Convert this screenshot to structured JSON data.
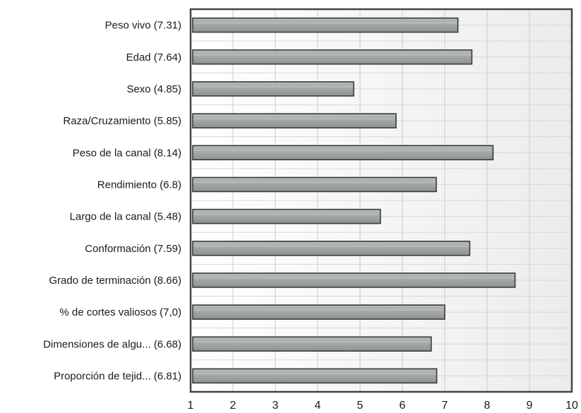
{
  "chart_data": {
    "type": "bar",
    "orientation": "horizontal",
    "categories": [
      "Peso vivo  (7.31)",
      "Edad  (7.64)",
      "Sexo  (4.85)",
      "Raza/Cruzamiento  (5.85)",
      "Peso de la canal (8.14)",
      "Rendimiento  (6.8)",
      "Largo de la canal (5.48)",
      "Conformación  (7.59)",
      "Grado de terminación  (8.66)",
      "% de cortes valiosos  (7,0)",
      "Dimensiones de algu...  (6.68)",
      "Proporción de tejid...  (6.81)"
    ],
    "values": [
      7.31,
      7.64,
      4.85,
      5.85,
      8.14,
      6.8,
      5.48,
      7.59,
      8.66,
      7.0,
      6.68,
      6.81
    ],
    "xlim": [
      1,
      10
    ],
    "xticks": [
      "1",
      "2",
      "3",
      "4",
      "5",
      "6",
      "7",
      "8",
      "9",
      "10"
    ],
    "title": "",
    "xlabel": "",
    "ylabel": "",
    "grid": true,
    "legend": "none",
    "bar_color": "#a4a9a8",
    "bar_edge_color": "#3a3a3a",
    "frame_color": "#444444"
  }
}
